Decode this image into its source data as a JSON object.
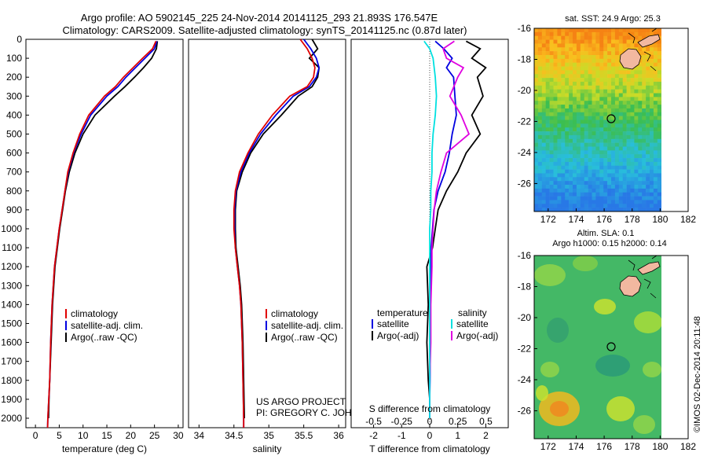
{
  "header": {
    "line1": "Argo profile: AO 5902145_225 24-Nov-2014 20141125_293 21.893S 176.547E",
    "line2": "Climatology: CARS2009. Satellite-adjusted climatology: synTS_20141125.nc (0.87d later)"
  },
  "depth_axis": {
    "ticks": [
      0,
      100,
      200,
      300,
      400,
      500,
      600,
      700,
      800,
      900,
      1000,
      1100,
      1200,
      1300,
      1400,
      1500,
      1600,
      1700,
      1800,
      1900,
      2000
    ]
  },
  "colors": {
    "climatology": "#e00000",
    "satellite": "#0000e0",
    "argo": "#000000",
    "sal_satellite": "#00e0e0",
    "sal_argo": "#e000e0",
    "land": "#f2b8a0"
  },
  "panel_temp": {
    "xlabel": "temperature (deg C)",
    "xticks": [
      0,
      5,
      10,
      15,
      20,
      25,
      30
    ],
    "legend": [
      "climatology",
      "satellite-adj. clim.",
      "Argo(..raw -QC)"
    ]
  },
  "panel_sal": {
    "xlabel": "salinity",
    "xticks": [
      34,
      34.5,
      35,
      35.5,
      36
    ],
    "xtick_labels": [
      "34",
      "34.5",
      "35",
      "35.5",
      "36"
    ],
    "legend": [
      "climatology",
      "satellite-adj. clim.",
      "Argo(..raw -QC)"
    ],
    "credit1": "US ARGO PROJECT",
    "credit2": "PI: GREGORY C. JOHNSON"
  },
  "panel_diff": {
    "top_label": "S difference from climatology",
    "top_ticks": [
      "-0.5",
      "-0.25",
      "0",
      "0.25",
      "0.5"
    ],
    "bottom_ticks": [
      "-2",
      "-1",
      "0",
      "1",
      "2"
    ],
    "xlabel": "T difference from climatology",
    "legend_temp_title": "temperature",
    "legend_sal_title": "salinity",
    "legend_temp": [
      "satellite",
      "Argo(-adj)"
    ],
    "legend_sal": [
      "satellite",
      "Argo(-adj)"
    ]
  },
  "map_sst": {
    "title": "sat. SST: 24.9  Argo: 25.3",
    "xticks": [
      "172",
      "174",
      "176",
      "178",
      "180",
      "182"
    ],
    "yticks": [
      "-16",
      "-18",
      "-20",
      "-22",
      "-24",
      "-26"
    ]
  },
  "map_sla": {
    "title1": "Altim. SLA: 0.1",
    "title2": "Argo h1000: 0.15  h2000: 0.14",
    "xticks": [
      "172",
      "174",
      "176",
      "178",
      "180",
      "182"
    ],
    "yticks": [
      "-16",
      "-18",
      "-20",
      "-22",
      "-24",
      "-26"
    ]
  },
  "footer": {
    "stamp": "©IMOS 02-Dec-2014 20:11:48"
  },
  "chart_data": [
    {
      "type": "line",
      "title": "",
      "xlabel": "temperature (deg C)",
      "ylabel": "",
      "xlim": [
        -2,
        31
      ],
      "ylim": [
        2050,
        0
      ],
      "series": [
        {
          "name": "climatology",
          "x": [
            25.3,
            24.6,
            22.5,
            20.5,
            18.5,
            16.8,
            14.5,
            11.2,
            9.3,
            7.9,
            6.8,
            6.2,
            5.6,
            5.0,
            4.5,
            4.0,
            3.5,
            3.2,
            3.0,
            2.8,
            2.6,
            2.55
          ],
          "y": [
            10,
            50,
            100,
            150,
            200,
            250,
            300,
            400,
            500,
            600,
            700,
            800,
            900,
            1000,
            1100,
            1200,
            1400,
            1600,
            1800,
            1900,
            2000,
            2050
          ]
        },
        {
          "name": "satellite-adj. clim.",
          "x": [
            25.5,
            25.0,
            23.0,
            21.0,
            19.0,
            17.3,
            15.0,
            11.6,
            9.6,
            8.0,
            6.9,
            6.2,
            5.6,
            5.0,
            4.5,
            4.0,
            3.5,
            3.2,
            3.0,
            2.8,
            2.6,
            2.55
          ],
          "y": [
            10,
            50,
            100,
            150,
            200,
            250,
            300,
            400,
            500,
            600,
            700,
            800,
            900,
            1000,
            1100,
            1200,
            1400,
            1600,
            1800,
            1900,
            2000,
            2050
          ]
        },
        {
          "name": "Argo(..raw -QC)",
          "x": [
            25.6,
            25.4,
            24.4,
            22.7,
            20.8,
            18.8,
            16.6,
            12.5,
            10.0,
            8.3,
            7.1,
            6.3,
            5.7,
            5.1,
            4.6,
            4.1,
            3.6,
            3.3,
            3.0,
            2.85,
            2.75
          ],
          "y": [
            10,
            50,
            100,
            150,
            200,
            250,
            300,
            400,
            500,
            600,
            700,
            800,
            900,
            1000,
            1100,
            1200,
            1400,
            1600,
            1800,
            1900,
            2000
          ]
        }
      ]
    },
    {
      "type": "line",
      "title": "",
      "xlabel": "salinity",
      "ylabel": "",
      "xlim": [
        33.85,
        36.1
      ],
      "ylim": [
        2050,
        0
      ],
      "series": [
        {
          "name": "climatology",
          "x": [
            35.45,
            35.55,
            35.62,
            35.66,
            35.64,
            35.55,
            35.3,
            35.05,
            34.85,
            34.7,
            34.58,
            34.52,
            34.5,
            34.5,
            34.52,
            34.55,
            34.58,
            34.6,
            34.62,
            34.63,
            34.64,
            34.64
          ],
          "y": [
            0,
            50,
            100,
            150,
            200,
            250,
            300,
            400,
            500,
            600,
            700,
            800,
            900,
            1000,
            1100,
            1200,
            1300,
            1400,
            1600,
            1800,
            2000,
            2050
          ]
        },
        {
          "name": "satellite-adj. clim.",
          "x": [
            35.5,
            35.6,
            35.68,
            35.72,
            35.68,
            35.58,
            35.35,
            35.1,
            34.88,
            34.72,
            34.6,
            34.53,
            34.51,
            34.51,
            34.52,
            34.55,
            34.58,
            34.6,
            34.62,
            34.63,
            34.64,
            34.64
          ],
          "y": [
            0,
            50,
            100,
            150,
            200,
            250,
            300,
            400,
            500,
            600,
            700,
            800,
            900,
            1000,
            1100,
            1200,
            1300,
            1400,
            1600,
            1800,
            2000,
            2050
          ]
        },
        {
          "name": "Argo(..raw -QC)",
          "x": [
            35.62,
            35.7,
            35.58,
            35.72,
            35.7,
            35.62,
            35.42,
            35.18,
            34.92,
            34.74,
            34.62,
            34.54,
            34.52,
            34.52,
            34.53,
            34.56,
            34.59,
            34.61,
            34.63,
            34.64,
            34.65
          ],
          "y": [
            0,
            50,
            100,
            150,
            200,
            250,
            300,
            400,
            500,
            600,
            700,
            800,
            900,
            1000,
            1100,
            1200,
            1300,
            1400,
            1600,
            1800,
            2000
          ]
        }
      ]
    },
    {
      "type": "line",
      "title": "",
      "xlabel": "T difference from climatology",
      "top_xlabel": "S difference from climatology",
      "ylabel": "",
      "xlim": [
        -2.8,
        2.8
      ],
      "top_xlim": [
        -0.7,
        0.7
      ],
      "ylim": [
        2050,
        0
      ],
      "series": [
        {
          "name": "temperature satellite",
          "axis": "T",
          "x": [
            0.2,
            0.5,
            0.8,
            0.6,
            0.85,
            0.9,
            0.95,
            0.8,
            0.7,
            0.55,
            0.3,
            0.15,
            0.1,
            0.05,
            0.05,
            0.03,
            0.02,
            0.01,
            0.0,
            0.0
          ],
          "y": [
            10,
            50,
            100,
            150,
            200,
            300,
            400,
            500,
            600,
            700,
            800,
            900,
            1000,
            1100,
            1200,
            1400,
            1600,
            1800,
            1900,
            2000
          ]
        },
        {
          "name": "temperature Argo(-adj)",
          "axis": "T",
          "x": [
            1.3,
            1.8,
            1.5,
            2.0,
            1.7,
            1.9,
            1.5,
            1.8,
            1.3,
            1.0,
            0.6,
            0.3,
            0.2,
            0.1,
            -0.1,
            -0.05,
            -0.1,
            -0.05,
            0.0,
            0.0
          ],
          "y": [
            10,
            50,
            100,
            150,
            200,
            300,
            400,
            500,
            600,
            700,
            800,
            900,
            1000,
            1100,
            1200,
            1400,
            1600,
            1800,
            1900,
            2000
          ]
        },
        {
          "name": "salinity satellite",
          "axis": "S",
          "x": [
            -0.05,
            0.0,
            0.03,
            0.04,
            0.05,
            0.06,
            0.05,
            0.03,
            0.02,
            0.02,
            0.01,
            0.01,
            0.0,
            0.0,
            0.0,
            0.0,
            0.0,
            0.0,
            0.0,
            0.0
          ],
          "y": [
            10,
            50,
            100,
            150,
            200,
            300,
            400,
            500,
            600,
            700,
            800,
            900,
            1000,
            1100,
            1200,
            1400,
            1600,
            1800,
            1900,
            2000
          ]
        },
        {
          "name": "salinity Argo(-adj)",
          "axis": "S",
          "x": [
            0.22,
            0.12,
            0.15,
            0.3,
            0.25,
            0.18,
            0.28,
            0.35,
            0.15,
            0.1,
            0.06,
            0.04,
            0.03,
            0.02,
            0.02,
            0.01,
            0.01,
            0.0,
            0.0,
            0.0
          ],
          "y": [
            10,
            50,
            100,
            150,
            200,
            300,
            400,
            500,
            600,
            700,
            800,
            900,
            1000,
            1100,
            1200,
            1400,
            1600,
            1800,
            1900,
            2000
          ]
        }
      ]
    },
    {
      "type": "heatmap",
      "title": "sat. SST: 24.9  Argo: 25.3",
      "xlim": [
        171,
        182
      ],
      "ylim": [
        -27.8,
        -16
      ],
      "marker": {
        "lon": 176.547,
        "lat": -21.893
      }
    },
    {
      "type": "heatmap",
      "title": "Altim. SLA: 0.1 / Argo h1000: 0.15  h2000: 0.14",
      "xlim": [
        171,
        182
      ],
      "ylim": [
        -27.8,
        -16
      ],
      "marker": {
        "lon": 176.547,
        "lat": -21.893
      }
    }
  ]
}
